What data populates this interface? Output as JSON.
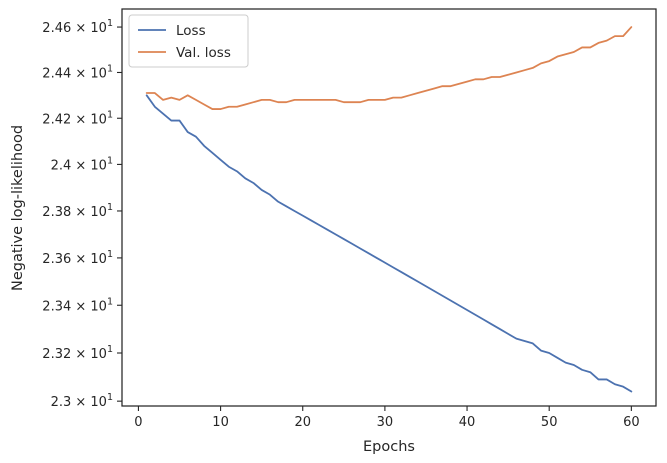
{
  "chart_data": {
    "type": "line",
    "xlabel": "Epochs",
    "ylabel": "Negative log-likelihood",
    "xlim": [
      -2,
      63
    ],
    "ylim": [
      22.98,
      24.68
    ],
    "x_ticks": [
      0,
      10,
      20,
      30,
      40,
      50,
      60
    ],
    "x_tick_labels": [
      "0",
      "10",
      "20",
      "30",
      "40",
      "50",
      "60"
    ],
    "y_ticks": [
      23.0,
      23.2,
      23.4,
      23.6,
      23.8,
      24.0,
      24.2,
      24.4,
      24.6
    ],
    "y_tick_labels": [
      {
        "mantissa": "2.3",
        "base": "10",
        "exp": "1"
      },
      {
        "mantissa": "2.32",
        "base": "10",
        "exp": "1"
      },
      {
        "mantissa": "2.34",
        "base": "10",
        "exp": "1"
      },
      {
        "mantissa": "2.36",
        "base": "10",
        "exp": "1"
      },
      {
        "mantissa": "2.38",
        "base": "10",
        "exp": "1"
      },
      {
        "mantissa": "2.4",
        "base": "10",
        "exp": "1"
      },
      {
        "mantissa": "2.42",
        "base": "10",
        "exp": "1"
      },
      {
        "mantissa": "2.44",
        "base": "10",
        "exp": "1"
      },
      {
        "mantissa": "2.46",
        "base": "10",
        "exp": "1"
      }
    ],
    "times_sign": "×",
    "y_scale": "log",
    "grid": false,
    "legend_position": "top-left",
    "x": [
      1,
      2,
      3,
      4,
      5,
      6,
      7,
      8,
      9,
      10,
      11,
      12,
      13,
      14,
      15,
      16,
      17,
      18,
      19,
      20,
      21,
      22,
      23,
      24,
      25,
      26,
      27,
      28,
      29,
      30,
      31,
      32,
      33,
      34,
      35,
      36,
      37,
      38,
      39,
      40,
      41,
      42,
      43,
      44,
      45,
      46,
      47,
      48,
      49,
      50,
      51,
      52,
      53,
      54,
      55,
      56,
      57,
      58,
      59,
      60
    ],
    "series": [
      {
        "name": "Loss",
        "color": "#4c72b0",
        "values": [
          24.3,
          24.25,
          24.22,
          24.19,
          24.19,
          24.14,
          24.12,
          24.08,
          24.05,
          24.02,
          23.99,
          23.97,
          23.94,
          23.92,
          23.89,
          23.87,
          23.84,
          23.82,
          23.8,
          23.78,
          23.76,
          23.74,
          23.72,
          23.7,
          23.68,
          23.66,
          23.64,
          23.62,
          23.6,
          23.58,
          23.56,
          23.54,
          23.52,
          23.5,
          23.48,
          23.46,
          23.44,
          23.42,
          23.4,
          23.38,
          23.36,
          23.34,
          23.32,
          23.3,
          23.28,
          23.26,
          23.25,
          23.24,
          23.21,
          23.2,
          23.18,
          23.16,
          23.15,
          23.13,
          23.12,
          23.09,
          23.09,
          23.07,
          23.06,
          23.04
        ]
      },
      {
        "name": "Val. loss",
        "color": "#dd8452",
        "values": [
          24.31,
          24.31,
          24.28,
          24.29,
          24.28,
          24.3,
          24.28,
          24.26,
          24.24,
          24.24,
          24.25,
          24.25,
          24.26,
          24.27,
          24.28,
          24.28,
          24.27,
          24.27,
          24.28,
          24.28,
          24.28,
          24.28,
          24.28,
          24.28,
          24.27,
          24.27,
          24.27,
          24.28,
          24.28,
          24.28,
          24.29,
          24.29,
          24.3,
          24.31,
          24.32,
          24.33,
          24.34,
          24.34,
          24.35,
          24.36,
          24.37,
          24.37,
          24.38,
          24.38,
          24.39,
          24.4,
          24.41,
          24.42,
          24.44,
          24.45,
          24.47,
          24.48,
          24.49,
          24.51,
          24.51,
          24.53,
          24.54,
          24.56,
          24.56,
          24.6
        ]
      }
    ]
  }
}
